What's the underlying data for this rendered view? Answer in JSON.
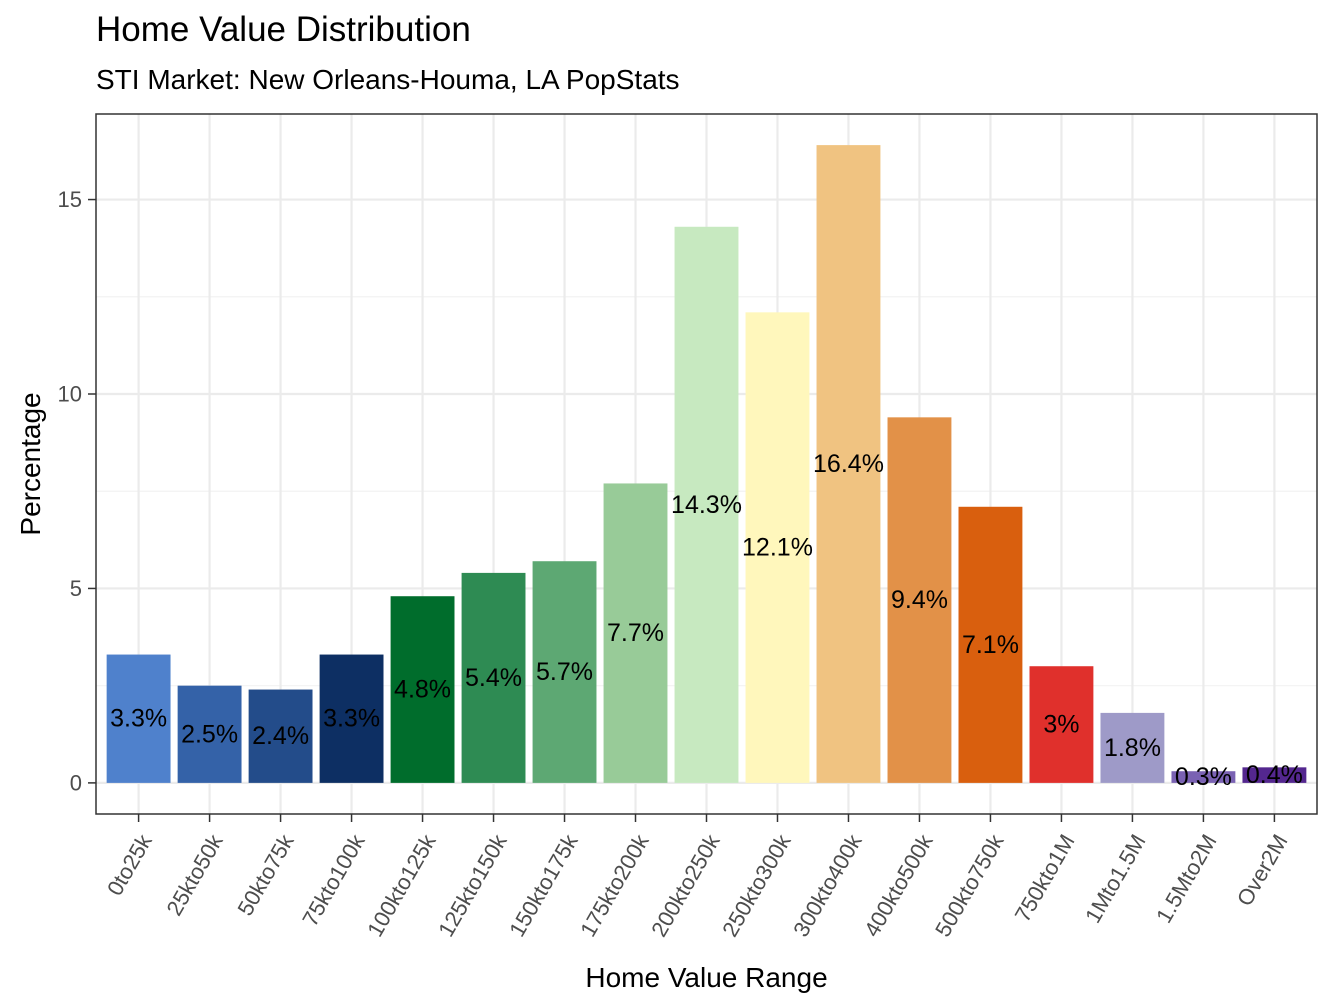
{
  "chart_data": {
    "type": "bar",
    "title": "Home Value Distribution",
    "subtitle": "STI Market: New Orleans-Houma, LA PopStats",
    "xlabel": "Home Value Range",
    "ylabel": "Percentage",
    "ylim": [
      -0.8,
      17.2
    ],
    "yticks": [
      0,
      5,
      10,
      15
    ],
    "grid": true,
    "categories": [
      "0to25k",
      "25kto50k",
      "50kto75k",
      "75kto100k",
      "100kto125k",
      "125kto150k",
      "150kto175k",
      "175kto200k",
      "200kto250k",
      "250kto300k",
      "300kto400k",
      "400kto500k",
      "500kto750k",
      "750kto1M",
      "1Mto1.5M",
      "1.5Mto2M",
      "Over2M"
    ],
    "values": [
      3.3,
      2.5,
      2.4,
      3.3,
      4.8,
      5.4,
      5.7,
      7.7,
      14.3,
      12.1,
      16.4,
      9.4,
      7.1,
      3.0,
      1.8,
      0.3,
      0.4
    ],
    "labels": [
      "3.3%",
      "2.5%",
      "2.4%",
      "3.3%",
      "4.8%",
      "5.4%",
      "5.7%",
      "7.7%",
      "14.3%",
      "12.1%",
      "16.4%",
      "9.4%",
      "7.1%",
      "3%",
      "1.8%",
      "0.3%",
      "0.4%"
    ],
    "colors": [
      "#4F81CC",
      "#3462A8",
      "#234C8A",
      "#0D2F63",
      "#006D2C",
      "#2E8B53",
      "#5DA873",
      "#98CB98",
      "#C7E9C0",
      "#FFF7BC",
      "#F0C381",
      "#E29148",
      "#D95F0E",
      "#E0302C",
      "#9E9AC8",
      "#7A62B3",
      "#54278F"
    ]
  }
}
